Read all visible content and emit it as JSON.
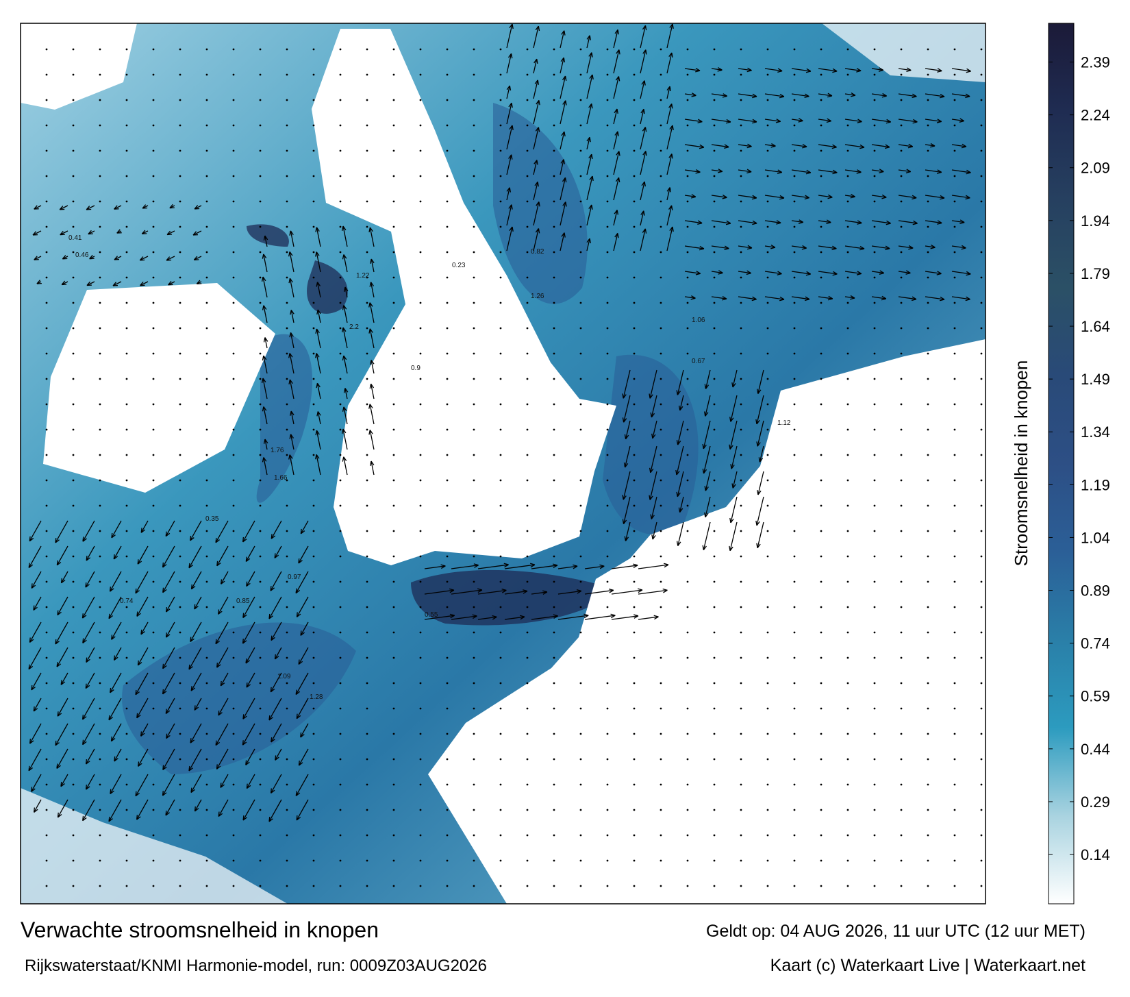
{
  "title": "Verwachte stroomsnelheid in knopen",
  "subtitle": "Rijkswaterstaat/KNMI Harmonie-model, run: 0009Z03AUG2026",
  "valid_time": "Geldt op: 04 AUG 2026, 11 uur UTC (12 uur MET)",
  "credit": "Kaart (c) Waterkaart Live | Waterkaart.net",
  "colorbar": {
    "label": "Stroomsnelheid in knopen",
    "clim": [
      0,
      2.5
    ],
    "ticks": [
      0.14,
      0.29,
      0.44,
      0.59,
      0.74,
      0.89,
      1.04,
      1.19,
      1.34,
      1.49,
      1.64,
      1.79,
      1.94,
      2.09,
      2.24,
      2.39
    ],
    "colors": [
      "#ffffff",
      "#a9d3e0",
      "#2c9bbf",
      "#2a7fa8",
      "#2b5f97",
      "#2d4f85",
      "#294a78",
      "#2b5066",
      "#264060",
      "#1f2c52",
      "#1b1a38"
    ]
  },
  "current_labels": [
    0.41,
    0.46,
    2.2,
    1.22,
    1.76,
    1.66,
    0.85,
    0.97,
    1.09,
    1.28,
    0.74,
    0.82,
    1.26,
    0.9,
    1.06,
    1.12,
    0.67,
    0.55,
    0.35,
    0.23
  ]
}
